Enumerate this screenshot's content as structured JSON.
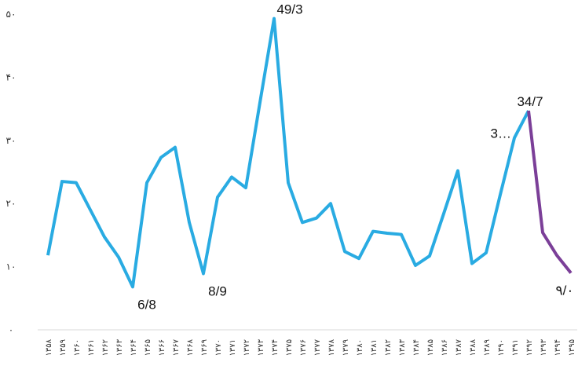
{
  "chart_data": {
    "type": "line",
    "categories": [
      "۱۳۵۸",
      "۱۳۵۹",
      "۱۳۶۰",
      "۱۳۶۱",
      "۱۳۶۲",
      "۱۳۶۳",
      "۱۳۶۴",
      "۱۳۶۵",
      "۱۳۶۶",
      "۱۳۶۷",
      "۱۳۶۸",
      "۱۳۶۹",
      "۱۳۷۰",
      "۱۳۷۱",
      "۱۳۷۲",
      "۱۳۷۳",
      "۱۳۷۴",
      "۱۳۷۵",
      "۱۳۷۶",
      "۱۳۷۷",
      "۱۳۷۸",
      "۱۳۷۹",
      "۱۳۸۰",
      "۱۳۸۱",
      "۱۳۸۲",
      "۱۳۸۳",
      "۱۳۸۴",
      "۱۳۸۵",
      "۱۳۸۶",
      "۱۳۸۷",
      "۱۳۸۸",
      "۱۳۸۹",
      "۱۳۹۰",
      "۱۳۹۱",
      "۱۳۹۲",
      "۱۳۹۳",
      "۱۳۹۴",
      "۱۳۹۵"
    ],
    "series": [
      {
        "color": "#29abe2",
        "values": [
          11.8,
          23.5,
          23.3,
          19.0,
          14.7,
          11.5,
          6.8,
          23.3,
          27.3,
          28.9,
          17.0,
          8.9,
          21.0,
          24.2,
          22.5,
          36.0,
          49.3,
          23.3,
          17.0,
          17.7,
          20.0,
          12.4,
          11.3,
          15.6,
          15.3,
          15.1,
          10.2,
          11.7,
          18.4,
          25.2,
          10.5,
          12.2,
          21.4,
          30.4,
          34.7,
          null,
          null,
          null
        ],
        "value_labels": [
          null,
          null,
          null,
          null,
          null,
          null,
          "6/8",
          null,
          null,
          null,
          null,
          "8/9",
          null,
          null,
          null,
          null,
          "49/3",
          null,
          null,
          null,
          null,
          null,
          null,
          null,
          null,
          null,
          null,
          null,
          null,
          null,
          null,
          null,
          null,
          "3…",
          "34/7",
          null,
          null,
          null
        ]
      },
      {
        "color": "#7b3f98",
        "values": [
          null,
          null,
          null,
          null,
          null,
          null,
          null,
          null,
          null,
          null,
          null,
          null,
          null,
          null,
          null,
          null,
          null,
          null,
          null,
          null,
          null,
          null,
          null,
          null,
          null,
          null,
          null,
          null,
          null,
          null,
          null,
          null,
          null,
          null,
          34.7,
          15.4,
          11.8,
          9.0
        ],
        "value_labels": [
          null,
          null,
          null,
          null,
          null,
          null,
          null,
          null,
          null,
          null,
          null,
          null,
          null,
          null,
          null,
          null,
          null,
          null,
          null,
          null,
          null,
          null,
          null,
          null,
          null,
          null,
          null,
          null,
          null,
          null,
          null,
          null,
          null,
          null,
          null,
          null,
          null,
          "۹/۰"
        ]
      }
    ],
    "ylim": [
      0,
      50
    ],
    "yticks": [
      {
        "value": 0,
        "label": "۰"
      },
      {
        "value": 10,
        "label": "۱۰"
      },
      {
        "value": 20,
        "label": "۲۰"
      },
      {
        "value": 30,
        "label": "۳۰"
      },
      {
        "value": 40,
        "label": "۴۰"
      },
      {
        "value": 50,
        "label": "۵۰"
      }
    ],
    "grid": false
  }
}
